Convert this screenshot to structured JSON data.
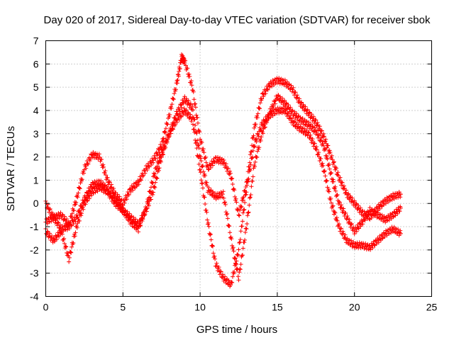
{
  "chart_data": {
    "type": "scatter",
    "title": "Day 020 of 2017, Sidereal Day-to-day VTEC variation (SDTVAR) for receiver sbok",
    "xlabel": "GPS time / hours",
    "ylabel": "SDTVAR / TECUs",
    "xlim": [
      0,
      25
    ],
    "ylim": [
      -4,
      7
    ],
    "x_ticks": [
      0,
      5,
      10,
      15,
      20,
      25
    ],
    "y_ticks": [
      -4,
      -3,
      -2,
      -1,
      0,
      1,
      2,
      3,
      4,
      5,
      6,
      7
    ],
    "x_tick_labels": [
      "0",
      "5",
      "10",
      "15",
      "20",
      "25"
    ],
    "y_tick_labels": [
      "-4",
      "-3",
      "-2",
      "-1",
      "0",
      "1",
      "2",
      "3",
      "4",
      "5",
      "6",
      "7"
    ],
    "grid": true,
    "marker": "+",
    "marker_color": "#ff0000",
    "series": [
      {
        "x": [
          0,
          0.5,
          1.0,
          1.5,
          2.0,
          2.5,
          3.0,
          3.5,
          4.0,
          4.5,
          5.0,
          5.5,
          6.0,
          6.5,
          7.0,
          7.5,
          8.0,
          8.5,
          8.8,
          9.0,
          9.5,
          10.0,
          10.5,
          11.0,
          11.5,
          12.0,
          12.5,
          13.0,
          13.5,
          14.0,
          14.5,
          15.0,
          15.5,
          16.0,
          16.5,
          17.0,
          17.5,
          18.0,
          18.5,
          19.0,
          19.5,
          20.0,
          20.5,
          21.0,
          21.5,
          22.0,
          22.5,
          23.0
        ],
        "values": [
          -0.8,
          -0.6,
          -0.5,
          -0.9,
          0.2,
          1.5,
          2.1,
          2.0,
          1.0,
          0.4,
          0.0,
          0.6,
          0.9,
          1.5,
          1.9,
          2.5,
          3.8,
          5.2,
          6.3,
          6.1,
          5.0,
          2.8,
          1.5,
          1.9,
          1.8,
          1.2,
          -0.5,
          0.8,
          3.2,
          4.6,
          5.1,
          5.3,
          5.2,
          4.9,
          4.3,
          3.9,
          3.5,
          2.9,
          2.0,
          1.1,
          0.4,
          0.0,
          -0.4,
          -0.6,
          -0.2,
          0.1,
          0.3,
          0.4
        ]
      },
      {
        "x": [
          0,
          0.5,
          1.0,
          1.5,
          2.0,
          2.5,
          3.0,
          3.5,
          4.0,
          4.5,
          5.0,
          5.5,
          6.0,
          6.5,
          7.0,
          7.5,
          8.0,
          8.5,
          9.0,
          9.5,
          10.0,
          10.5,
          11.0,
          11.5,
          12.0,
          12.5,
          13.0,
          13.5,
          14.0,
          14.5,
          15.0,
          15.5,
          16.0,
          16.5,
          17.0,
          17.5,
          18.0,
          18.5,
          19.0,
          19.5,
          20.0,
          20.5,
          21.0,
          21.5,
          22.0,
          22.5,
          23.0
        ],
        "values": [
          0.0,
          -0.6,
          -1.1,
          -1.0,
          -0.6,
          0.2,
          0.8,
          0.9,
          0.6,
          0.2,
          -0.3,
          -0.6,
          -0.9,
          -0.3,
          0.6,
          2.0,
          3.0,
          3.9,
          4.5,
          4.1,
          2.0,
          0.6,
          0.3,
          0.4,
          -1.5,
          -3.2,
          -1.0,
          1.6,
          3.0,
          3.9,
          4.6,
          4.3,
          3.9,
          3.6,
          3.4,
          3.1,
          2.5,
          1.2,
          0.0,
          -0.6,
          -1.2,
          -0.8,
          -0.3,
          -0.5,
          -0.7,
          -0.5,
          -0.2
        ]
      },
      {
        "x": [
          0,
          0.5,
          1.0,
          1.5,
          2.0,
          2.5,
          3.0,
          3.5,
          4.0,
          4.5,
          5.0,
          5.5,
          6.0,
          6.5,
          7.0,
          7.5,
          8.0,
          8.5,
          9.0,
          9.5,
          10.0,
          10.5,
          11.0,
          11.5,
          12.0,
          12.5,
          13.0,
          13.5,
          14.0,
          14.5,
          15.0,
          15.5,
          16.0,
          16.5,
          17.0,
          17.5,
          18.0,
          18.5,
          19.0,
          19.5,
          20.0,
          20.5,
          21.0,
          21.5,
          22.0,
          22.5,
          23.0
        ],
        "values": [
          -1.2,
          -1.6,
          -1.2,
          -2.4,
          -1.0,
          0.0,
          0.5,
          0.7,
          0.5,
          0.0,
          -0.3,
          -0.8,
          -1.1,
          -0.2,
          1.2,
          2.2,
          3.0,
          3.6,
          4.0,
          3.6,
          1.4,
          -0.8,
          -2.6,
          -3.2,
          -3.5,
          -2.0,
          0.6,
          2.5,
          3.4,
          3.8,
          4.0,
          4.0,
          3.5,
          3.2,
          3.0,
          2.4,
          1.5,
          0.0,
          -1.0,
          -1.6,
          -1.8,
          -1.8,
          -1.9,
          -1.6,
          -1.3,
          -1.1,
          -1.3
        ]
      }
    ]
  }
}
